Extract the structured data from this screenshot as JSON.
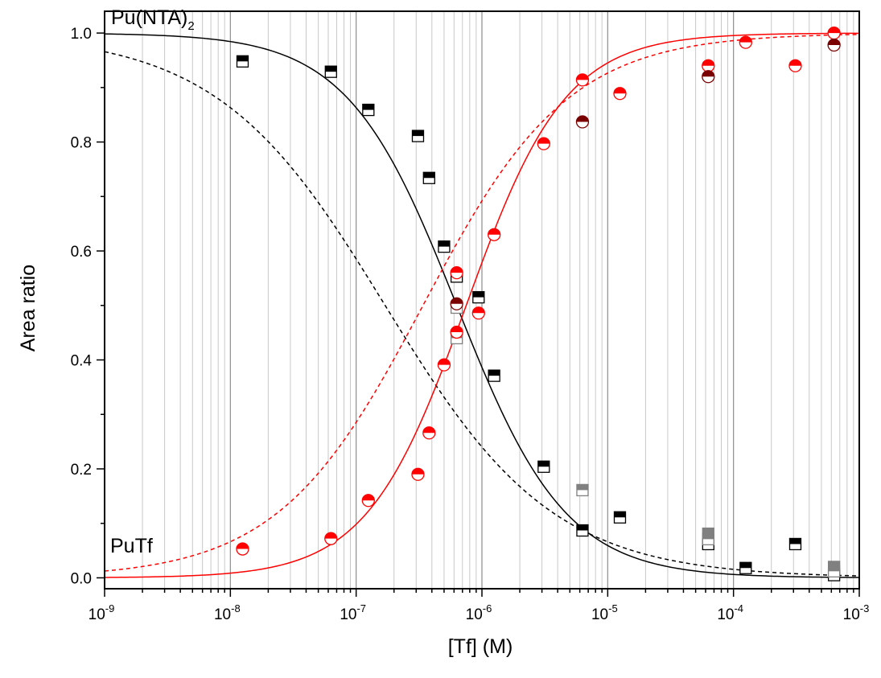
{
  "chart_data": {
    "type": "scatter",
    "title": "",
    "xlabel": "[Tf] (M)",
    "ylabel": "Area ratio",
    "x_scale": "log",
    "xlim": [
      1e-09,
      0.001
    ],
    "ylim": [
      -0.02,
      1.04
    ],
    "grid": "vertical minor and major lines at log decades",
    "x_ticks": [
      {
        "base": "10",
        "exp": "-9",
        "value": 1e-09
      },
      {
        "base": "10",
        "exp": "-8",
        "value": 1e-08
      },
      {
        "base": "10",
        "exp": "-7",
        "value": 1e-07
      },
      {
        "base": "10",
        "exp": "-6",
        "value": 1e-06
      },
      {
        "base": "10",
        "exp": "-5",
        "value": 1e-05
      },
      {
        "base": "10",
        "exp": "-4",
        "value": 0.0001
      },
      {
        "base": "10",
        "exp": "-3",
        "value": 0.001
      }
    ],
    "y_ticks": [
      {
        "label": "0.0",
        "value": 0.0
      },
      {
        "label": "0.2",
        "value": 0.2
      },
      {
        "label": "0.4",
        "value": 0.4
      },
      {
        "label": "0.6",
        "value": 0.6
      },
      {
        "label": "0.8",
        "value": 0.8
      },
      {
        "label": "1.0",
        "value": 1.0
      }
    ],
    "annotations": {
      "top_label": {
        "text": "Pu(NTA)",
        "sub": "2"
      },
      "bottom_label": {
        "text": "PuTf"
      }
    },
    "colors": {
      "black": "#000000",
      "red": "#ff0000",
      "darkred": "#7a0000",
      "gray": "#808080",
      "grid": "#c8c8c8",
      "grid_major": "#8c8c8c"
    },
    "fit_curves": [
      {
        "color": "black",
        "dash": false,
        "kind": "decreasing",
        "midpoint": 6.3e-07,
        "hill": 1.0
      },
      {
        "color": "black",
        "dash": true,
        "kind": "decreasing",
        "midpoint": 1.7e-07,
        "hill": 0.65
      },
      {
        "color": "red",
        "dash": false,
        "kind": "increasing",
        "midpoint": 7.5e-07,
        "hill": 1.1
      },
      {
        "color": "red",
        "dash": true,
        "kind": "increasing",
        "midpoint": 3.4e-07,
        "hill": 0.75
      }
    ],
    "series": [
      {
        "marker": "square-half",
        "color": "black",
        "points": [
          {
            "x": 1.25e-08,
            "y": 0.948
          },
          {
            "x": 6.3e-08,
            "y": 0.929
          },
          {
            "x": 1.25e-07,
            "y": 0.859
          },
          {
            "x": 3.1e-07,
            "y": 0.811
          },
          {
            "x": 3.8e-07,
            "y": 0.734
          },
          {
            "x": 5e-07,
            "y": 0.608
          },
          {
            "x": 6.3e-07,
            "y": 0.553
          },
          {
            "x": 9.4e-07,
            "y": 0.515
          },
          {
            "x": 1.25e-06,
            "y": 0.371
          },
          {
            "x": 3.1e-06,
            "y": 0.204
          },
          {
            "x": 6.3e-06,
            "y": 0.087
          },
          {
            "x": 1.25e-05,
            "y": 0.111
          },
          {
            "x": 6.3e-05,
            "y": 0.062
          },
          {
            "x": 0.000125,
            "y": 0.018
          },
          {
            "x": 0.00031,
            "y": 0.062
          },
          {
            "x": 0.00063,
            "y": 0.005
          }
        ]
      },
      {
        "marker": "square-half",
        "color": "gray",
        "points": [
          {
            "x": 6.3e-07,
            "y": 0.496
          },
          {
            "x": 6.3e-07,
            "y": 0.44
          },
          {
            "x": 6.3e-06,
            "y": 0.161
          },
          {
            "x": 6.3e-05,
            "y": 0.081
          },
          {
            "x": 6.3e-05,
            "y": 0.071
          },
          {
            "x": 0.00063,
            "y": 0.02
          },
          {
            "x": 0.00063,
            "y": 0.012
          }
        ]
      },
      {
        "marker": "circle-half",
        "color": "red",
        "points": [
          {
            "x": 1.25e-08,
            "y": 0.053
          },
          {
            "x": 6.3e-08,
            "y": 0.072
          },
          {
            "x": 1.25e-07,
            "y": 0.142
          },
          {
            "x": 3.1e-07,
            "y": 0.19
          },
          {
            "x": 3.8e-07,
            "y": 0.266
          },
          {
            "x": 5e-07,
            "y": 0.391
          },
          {
            "x": 6.3e-07,
            "y": 0.451
          },
          {
            "x": 6.3e-07,
            "y": 0.56
          },
          {
            "x": 9.4e-07,
            "y": 0.486
          },
          {
            "x": 1.25e-06,
            "y": 0.63
          },
          {
            "x": 3.1e-06,
            "y": 0.797
          },
          {
            "x": 6.3e-06,
            "y": 0.914
          },
          {
            "x": 1.25e-05,
            "y": 0.889
          },
          {
            "x": 6.3e-05,
            "y": 0.94
          },
          {
            "x": 0.000125,
            "y": 0.983
          },
          {
            "x": 0.00031,
            "y": 0.94
          },
          {
            "x": 0.00063,
            "y": 1.0
          }
        ]
      },
      {
        "marker": "circle-half",
        "color": "darkred",
        "points": [
          {
            "x": 6.3e-07,
            "y": 0.503
          },
          {
            "x": 6.3e-06,
            "y": 0.837
          },
          {
            "x": 6.3e-05,
            "y": 0.92
          },
          {
            "x": 0.00063,
            "y": 0.978
          }
        ]
      }
    ]
  }
}
